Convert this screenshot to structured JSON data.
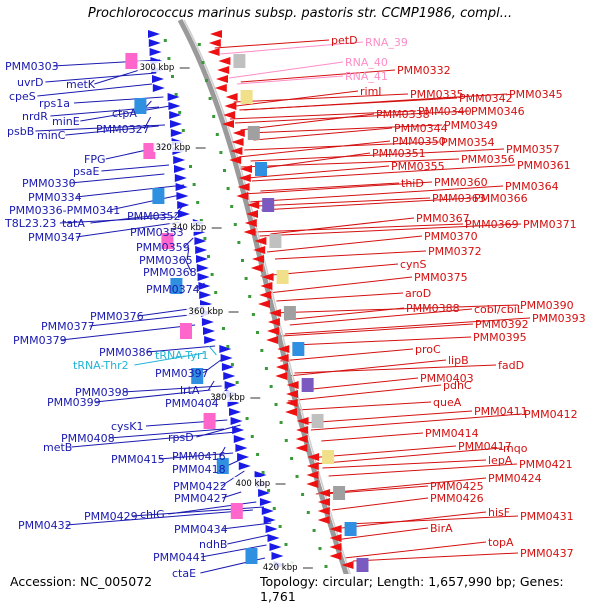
{
  "title": "Prochlorococcus marinus subsp. pastoris str. CCMP1986, compl...",
  "accession": "Accession: NC_005072",
  "topology": "Topology: circular; Length: 1,657,990 bp; Genes: 1,761",
  "colors": {
    "left_label": "#1a1ab0",
    "right_label": "#d41010",
    "rna_label": "#ff8cc6",
    "trna_label": "#22b4d8",
    "backbone": "#999999",
    "forward_arrow": "#1a1ae6",
    "reverse_arrow": "#ee1111"
  },
  "ticks": [
    {
      "label": "300 kbp"
    },
    {
      "label": "320 kbp"
    },
    {
      "label": "340 kbp"
    },
    {
      "label": "360 kbp"
    },
    {
      "label": "380 kbp"
    },
    {
      "label": "400 kbp"
    },
    {
      "label": "420 kbp"
    }
  ],
  "left_labels": [
    {
      "text": "PMM0303",
      "kind": "gene"
    },
    {
      "text": "uvrD",
      "kind": "gene"
    },
    {
      "text": "cpeS",
      "kind": "gene"
    },
    {
      "text": "metK",
      "kind": "gene"
    },
    {
      "text": "rps1a",
      "kind": "gene"
    },
    {
      "text": "nrdR",
      "kind": "gene"
    },
    {
      "text": "ctpA",
      "kind": "gene"
    },
    {
      "text": "minE",
      "kind": "gene"
    },
    {
      "text": "psbB",
      "kind": "gene"
    },
    {
      "text": "minC",
      "kind": "gene"
    },
    {
      "text": "PMM0327",
      "kind": "gene"
    },
    {
      "text": "FPG",
      "kind": "gene"
    },
    {
      "text": "psaE",
      "kind": "gene"
    },
    {
      "text": "PMM0330",
      "kind": "gene"
    },
    {
      "text": "PMM0334",
      "kind": "gene"
    },
    {
      "text": "PMM0336-PMM0341",
      "kind": "gene"
    },
    {
      "text": "T8L23.23",
      "kind": "gene"
    },
    {
      "text": "tatA",
      "kind": "gene"
    },
    {
      "text": "PMM0352",
      "kind": "gene"
    },
    {
      "text": "PMM0347",
      "kind": "gene"
    },
    {
      "text": "PMM0353",
      "kind": "gene"
    },
    {
      "text": "PMM0359",
      "kind": "gene"
    },
    {
      "text": "PMM0365",
      "kind": "gene"
    },
    {
      "text": "PMM0368",
      "kind": "gene"
    },
    {
      "text": "PMM0374",
      "kind": "gene"
    },
    {
      "text": "PMM0376",
      "kind": "gene"
    },
    {
      "text": "PMM0377",
      "kind": "gene"
    },
    {
      "text": "PMM0379",
      "kind": "gene"
    },
    {
      "text": "PMM0386",
      "kind": "gene"
    },
    {
      "text": "tRNA-Tyr1",
      "kind": "trna"
    },
    {
      "text": "tRNA-Thr2",
      "kind": "trna"
    },
    {
      "text": "PMM0397",
      "kind": "gene"
    },
    {
      "text": "PMM0398",
      "kind": "gene"
    },
    {
      "text": "lrtA",
      "kind": "gene"
    },
    {
      "text": "PMM0399",
      "kind": "gene"
    },
    {
      "text": "PMM0404",
      "kind": "gene"
    },
    {
      "text": "cysK1",
      "kind": "gene"
    },
    {
      "text": "PMM0408",
      "kind": "gene"
    },
    {
      "text": "rpsD",
      "kind": "gene"
    },
    {
      "text": "metB",
      "kind": "gene"
    },
    {
      "text": "PMM0415",
      "kind": "gene"
    },
    {
      "text": "PMM0416",
      "kind": "gene"
    },
    {
      "text": "PMM0418",
      "kind": "gene"
    },
    {
      "text": "PMM0422",
      "kind": "gene"
    },
    {
      "text": "PMM0427",
      "kind": "gene"
    },
    {
      "text": "PMM0429",
      "kind": "gene"
    },
    {
      "text": "chlG",
      "kind": "gene"
    },
    {
      "text": "PMM0432",
      "kind": "gene"
    },
    {
      "text": "PMM0434",
      "kind": "gene"
    },
    {
      "text": "ndhB",
      "kind": "gene"
    },
    {
      "text": "PMM0441",
      "kind": "gene"
    },
    {
      "text": "ctaE",
      "kind": "gene"
    }
  ],
  "right_labels": [
    {
      "text": "petD",
      "kind": "gene"
    },
    {
      "text": "RNA_39",
      "kind": "rna"
    },
    {
      "text": "RNA_40",
      "kind": "rna"
    },
    {
      "text": "RNA_41",
      "kind": "rna"
    },
    {
      "text": "PMM0332",
      "kind": "gene"
    },
    {
      "text": "rimI",
      "kind": "gene"
    },
    {
      "text": "PMM0335",
      "kind": "gene"
    },
    {
      "text": "PMM0342",
      "kind": "gene"
    },
    {
      "text": "PMM0345",
      "kind": "gene"
    },
    {
      "text": "PMM0340",
      "kind": "gene"
    },
    {
      "text": "PMM0346",
      "kind": "gene"
    },
    {
      "text": "PMM0338",
      "kind": "gene"
    },
    {
      "text": "PMM0349",
      "kind": "gene"
    },
    {
      "text": "PMM0344",
      "kind": "gene"
    },
    {
      "text": "PMM0350",
      "kind": "gene"
    },
    {
      "text": "PMM0354",
      "kind": "gene"
    },
    {
      "text": "PMM0357",
      "kind": "gene"
    },
    {
      "text": "PMM0351",
      "kind": "gene"
    },
    {
      "text": "PMM0356",
      "kind": "gene"
    },
    {
      "text": "PMM0355",
      "kind": "gene"
    },
    {
      "text": "PMM0361",
      "kind": "gene"
    },
    {
      "text": "thiD",
      "kind": "gene"
    },
    {
      "text": "PMM0360",
      "kind": "gene"
    },
    {
      "text": "PMM0364",
      "kind": "gene"
    },
    {
      "text": "PMM0363",
      "kind": "gene"
    },
    {
      "text": "PMM0366",
      "kind": "gene"
    },
    {
      "text": "PMM0367",
      "kind": "gene"
    },
    {
      "text": "PMM0369",
      "kind": "gene"
    },
    {
      "text": "PMM0371",
      "kind": "gene"
    },
    {
      "text": "PMM0370",
      "kind": "gene"
    },
    {
      "text": "PMM0372",
      "kind": "gene"
    },
    {
      "text": "cynS",
      "kind": "gene"
    },
    {
      "text": "PMM0375",
      "kind": "gene"
    },
    {
      "text": "aroD",
      "kind": "gene"
    },
    {
      "text": "PMM0388",
      "kind": "gene"
    },
    {
      "text": "cobI/cbiL",
      "kind": "gene"
    },
    {
      "text": "PMM0390",
      "kind": "gene"
    },
    {
      "text": "PMM0392",
      "kind": "gene"
    },
    {
      "text": "PMM0393",
      "kind": "gene"
    },
    {
      "text": "PMM0395",
      "kind": "gene"
    },
    {
      "text": "proC",
      "kind": "gene"
    },
    {
      "text": "lipB",
      "kind": "gene"
    },
    {
      "text": "fadD",
      "kind": "gene"
    },
    {
      "text": "PMM0403",
      "kind": "gene"
    },
    {
      "text": "pdhC",
      "kind": "gene"
    },
    {
      "text": "queA",
      "kind": "gene"
    },
    {
      "text": "PMM0411",
      "kind": "gene"
    },
    {
      "text": "PMM0412",
      "kind": "gene"
    },
    {
      "text": "PMM0414",
      "kind": "gene"
    },
    {
      "text": "PMM0417",
      "kind": "gene"
    },
    {
      "text": "mqo",
      "kind": "gene"
    },
    {
      "text": "lepA",
      "kind": "gene"
    },
    {
      "text": "PMM0421",
      "kind": "gene"
    },
    {
      "text": "PMM0424",
      "kind": "gene"
    },
    {
      "text": "PMM0425",
      "kind": "gene"
    },
    {
      "text": "PMM0426",
      "kind": "gene"
    },
    {
      "text": "hisF",
      "kind": "gene"
    },
    {
      "text": "PMM0431",
      "kind": "gene"
    },
    {
      "text": "BirA",
      "kind": "gene"
    },
    {
      "text": "topA",
      "kind": "gene"
    },
    {
      "text": "PMM0437",
      "kind": "gene"
    }
  ]
}
